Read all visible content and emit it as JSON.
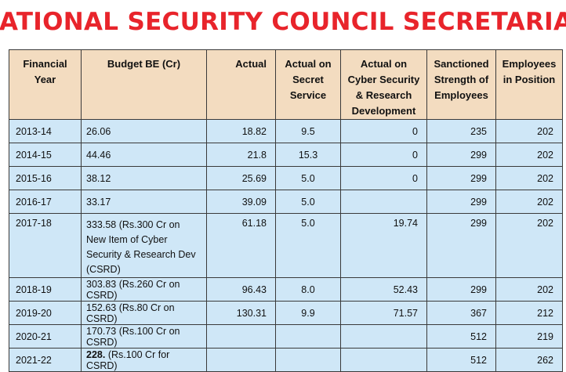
{
  "title": "NATIONAL SECURITY COUNCIL SECRETARIAT",
  "headers": {
    "year": "Financial Year",
    "budget": "Budget  BE (Cr)",
    "actual": "Actual",
    "secret": "Actual on Secret Service",
    "cyber": "Actual on Cyber Security & Research Development",
    "sanctioned": "Sanctioned Strength of Employees",
    "employees": "Employees in Position"
  },
  "rows": [
    {
      "year": "2013-14",
      "budget": "26.06",
      "actual": "18.82",
      "secret": "9.5",
      "cyber": "0",
      "sanctioned": "235",
      "employees": "202"
    },
    {
      "year": "2014-15",
      "budget": "44.46",
      "actual": "21.8",
      "secret": "15.3",
      "cyber": "0",
      "sanctioned": "299",
      "employees": "202"
    },
    {
      "year": "2015-16",
      "budget": "38.12",
      "actual": "25.69",
      "secret": "5.0",
      "cyber": "0",
      "sanctioned": "299",
      "employees": "202"
    },
    {
      "year": "2016-17",
      "budget": "33.17",
      "actual": "39.09",
      "secret": "5.0",
      "cyber": "",
      "sanctioned": "299",
      "employees": "202"
    },
    {
      "year": "2017-18",
      "budget": "333.58 (Rs.300 Cr on New Item of Cyber Security & Research Dev (CSRD)",
      "actual": "61.18",
      "secret": "5.0",
      "cyber": "19.74",
      "sanctioned": "299",
      "employees": "202"
    },
    {
      "year": "2018-19",
      "budget": "303.83 (Rs.260 Cr on CSRD)",
      "actual": "96.43",
      "secret": "8.0",
      "cyber": "52.43",
      "sanctioned": "299",
      "employees": "202"
    },
    {
      "year": "2019-20",
      "budget": "152.63 (Rs.80 Cr on CSRD)",
      "actual": "130.31",
      "secret": "9.9",
      "cyber": "71.57",
      "sanctioned": "367",
      "employees": "212"
    },
    {
      "year": "2020-21",
      "budget": "170.73 (Rs.100 Cr on CSRD)",
      "actual": "",
      "secret": "",
      "cyber": "",
      "sanctioned": "512",
      "employees": "219"
    },
    {
      "year": "2021-22",
      "budget_bold": "228.",
      "budget": " (Rs.100 Cr for CSRD)",
      "actual": "",
      "secret": "",
      "cyber": "",
      "sanctioned": "512",
      "employees": "262"
    }
  ]
}
